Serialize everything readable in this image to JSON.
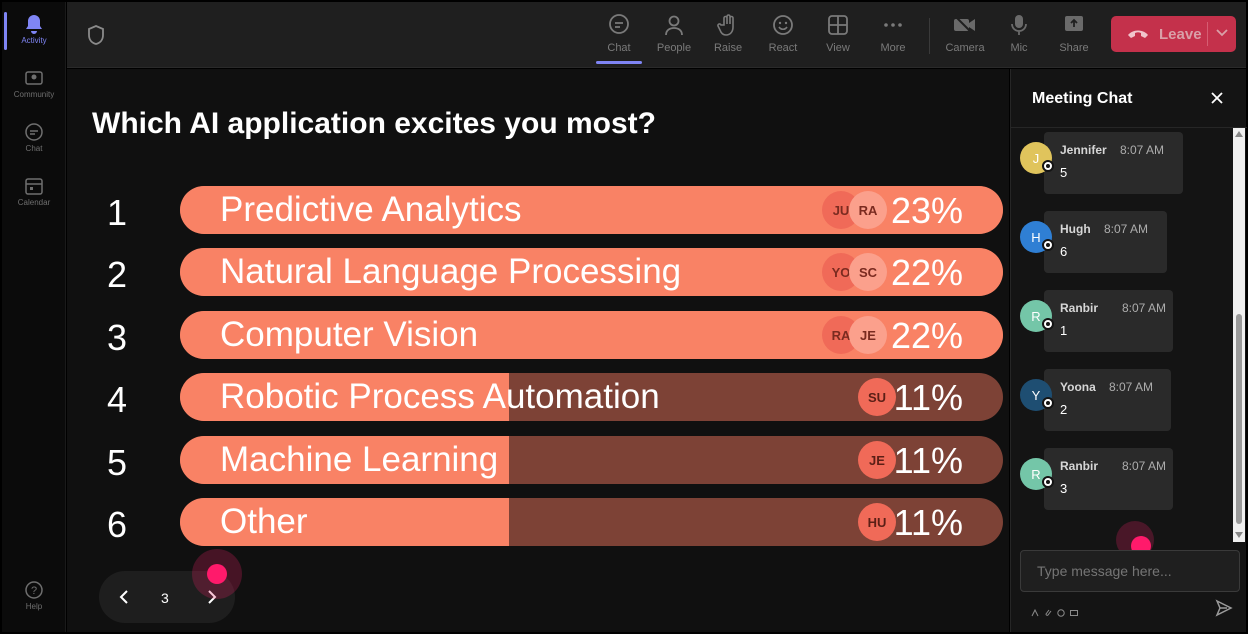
{
  "rail": {
    "items": [
      {
        "label": "Activity",
        "icon": "bell-icon",
        "active": true
      },
      {
        "label": "Community",
        "icon": "community-icon"
      },
      {
        "label": "Chat",
        "icon": "chat-icon"
      },
      {
        "label": "Calendar",
        "icon": "calendar-icon"
      }
    ],
    "help": "Help"
  },
  "toolbar": {
    "chat": "Chat",
    "people": "People",
    "raise": "Raise",
    "react": "React",
    "view": "View",
    "more": "More",
    "camera": "Camera",
    "mic": "Mic",
    "share": "Share",
    "leave": "Leave"
  },
  "poll": {
    "question": "Which AI application excites you most?",
    "page": "3",
    "options": [
      {
        "rank": "1",
        "label": "Predictive Analytics",
        "percent": "23%",
        "fill": 1.0,
        "voters": [
          "JU",
          "RA"
        ]
      },
      {
        "rank": "2",
        "label": "Natural Language Processing",
        "percent": "22%",
        "fill": 1.0,
        "voters": [
          "YO",
          "SC"
        ]
      },
      {
        "rank": "3",
        "label": "Computer Vision",
        "percent": "22%",
        "fill": 1.0,
        "voters": [
          "RA",
          "JE"
        ]
      },
      {
        "rank": "4",
        "label": "Robotic Process Automation",
        "percent": "11%",
        "fill": 0.5,
        "voters": [
          "SU"
        ]
      },
      {
        "rank": "5",
        "label": "Machine Learning",
        "percent": "11%",
        "fill": 0.5,
        "voters": [
          "JE"
        ]
      },
      {
        "rank": "6",
        "label": "Other",
        "percent": "11%",
        "fill": 0.5,
        "voters": [
          "HU"
        ]
      }
    ],
    "colors": {
      "bar_fill": "#f98265",
      "bar_track": "#7d4236"
    }
  },
  "chat": {
    "title": "Meeting Chat",
    "placeholder": "Type message here...",
    "messages": [
      {
        "initial": "J",
        "name": "Jennifer",
        "time": "8:07 AM",
        "text": "5",
        "color": "#e0c45c"
      },
      {
        "initial": "H",
        "name": "Hugh",
        "time": "8:07 AM",
        "text": "6",
        "color": "#2f7fd4"
      },
      {
        "initial": "R",
        "name": "Ranbir",
        "time": "8:07 AM",
        "text": "1",
        "color": "#74c6a8"
      },
      {
        "initial": "Y",
        "name": "Yoona",
        "time": "8:07 AM",
        "text": "2",
        "color": "#1e4e72"
      },
      {
        "initial": "R",
        "name": "Ranbir",
        "time": "8:07 AM",
        "text": "3",
        "color": "#74c6a8"
      }
    ]
  }
}
